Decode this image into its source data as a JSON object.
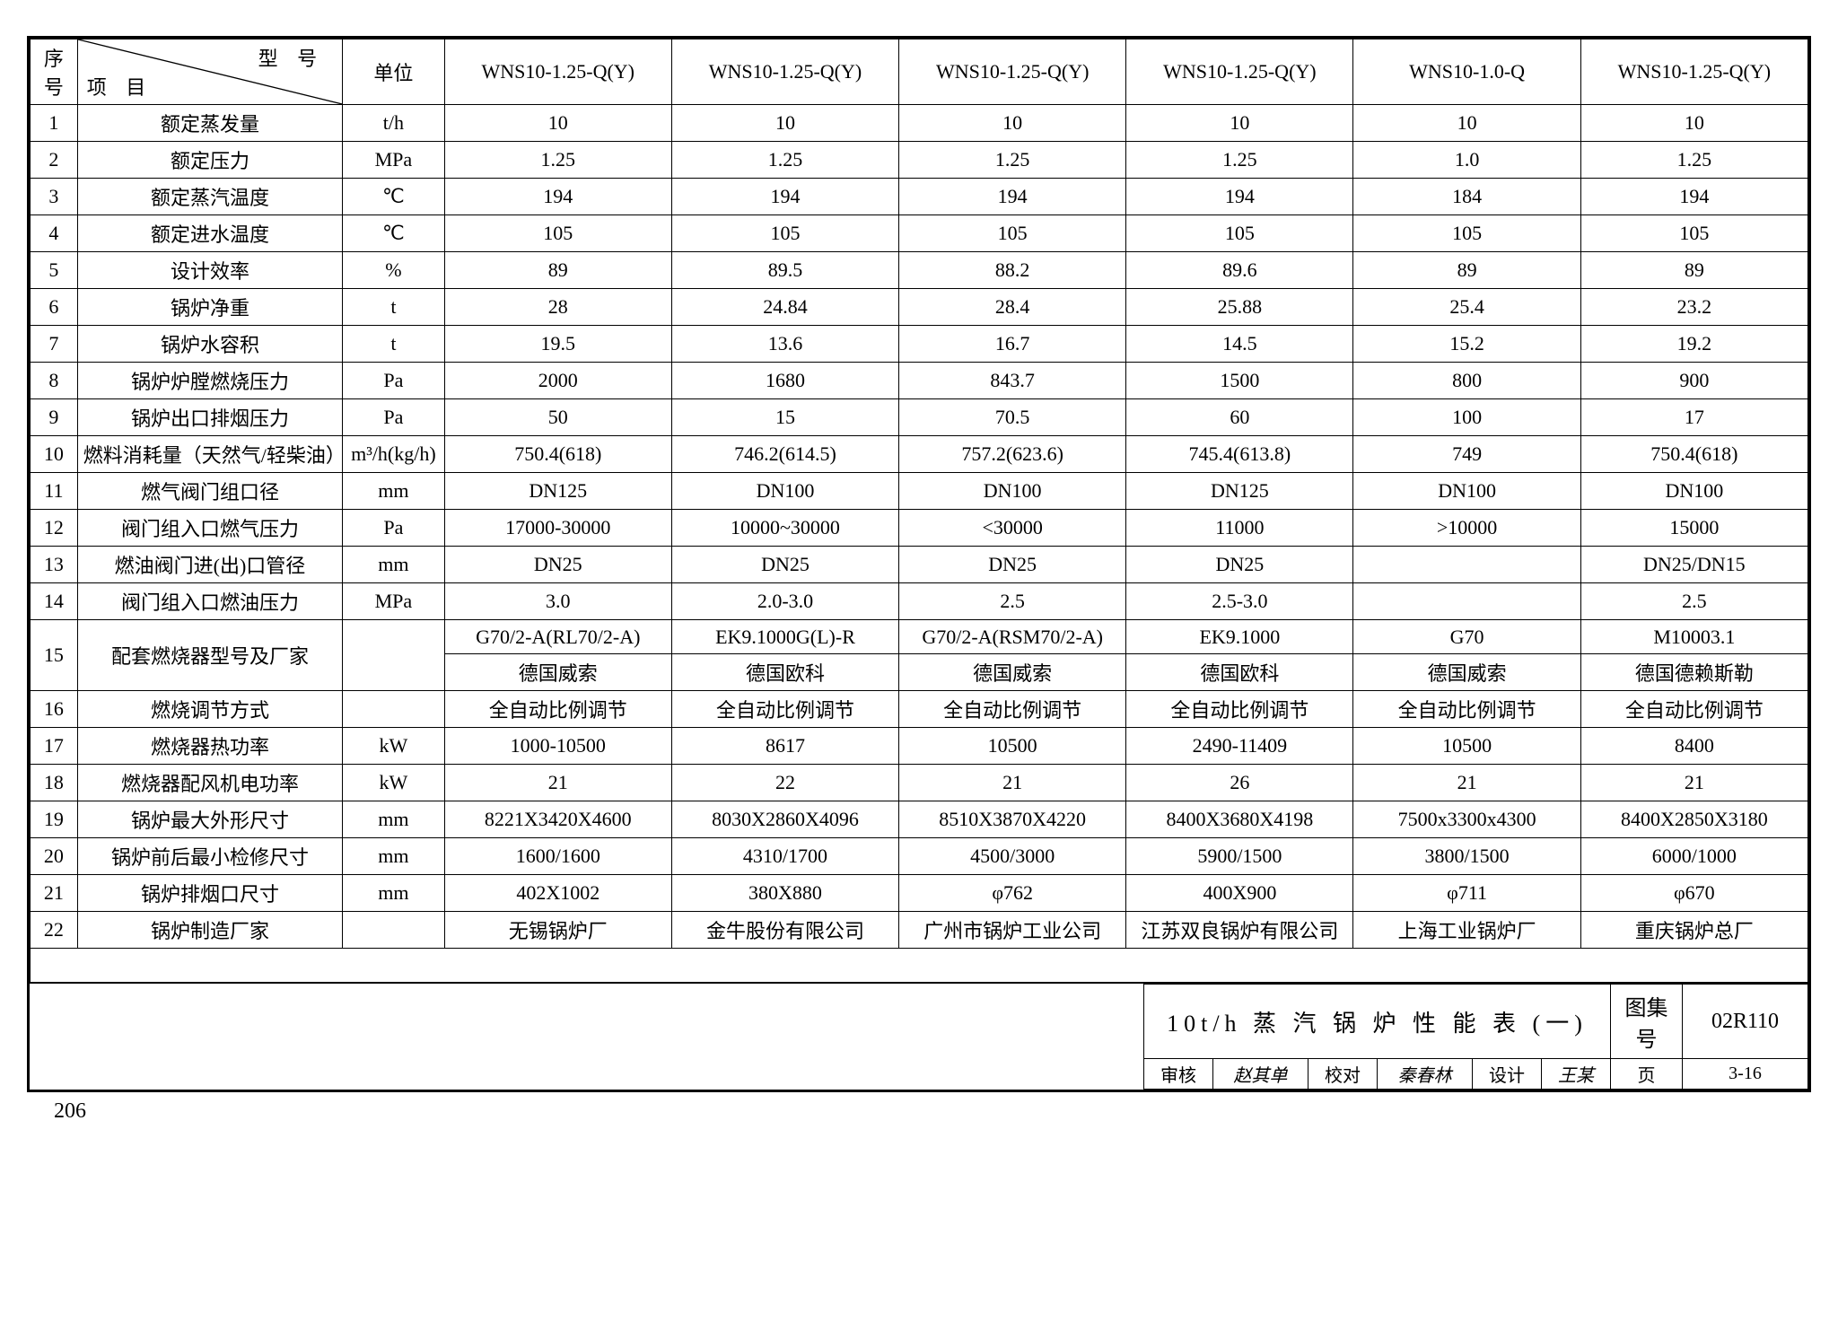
{
  "header": {
    "seq": "序号",
    "diag_top": "型 号",
    "diag_bottom": "项 目",
    "unit": "单位",
    "models": [
      "WNS10-1.25-Q(Y)",
      "WNS10-1.25-Q(Y)",
      "WNS10-1.25-Q(Y)",
      "WNS10-1.25-Q(Y)",
      "WNS10-1.0-Q",
      "WNS10-1.25-Q(Y)"
    ]
  },
  "rows": [
    {
      "n": "1",
      "item": "额定蒸发量",
      "unit": "t/h",
      "v": [
        "10",
        "10",
        "10",
        "10",
        "10",
        "10"
      ]
    },
    {
      "n": "2",
      "item": "额定压力",
      "unit": "MPa",
      "v": [
        "1.25",
        "1.25",
        "1.25",
        "1.25",
        "1.0",
        "1.25"
      ]
    },
    {
      "n": "3",
      "item": "额定蒸汽温度",
      "unit": "℃",
      "v": [
        "194",
        "194",
        "194",
        "194",
        "184",
        "194"
      ]
    },
    {
      "n": "4",
      "item": "额定进水温度",
      "unit": "℃",
      "v": [
        "105",
        "105",
        "105",
        "105",
        "105",
        "105"
      ]
    },
    {
      "n": "5",
      "item": "设计效率",
      "unit": "%",
      "v": [
        "89",
        "89.5",
        "88.2",
        "89.6",
        "89",
        "89"
      ]
    },
    {
      "n": "6",
      "item": "锅炉净重",
      "unit": "t",
      "v": [
        "28",
        "24.84",
        "28.4",
        "25.88",
        "25.4",
        "23.2"
      ]
    },
    {
      "n": "7",
      "item": "锅炉水容积",
      "unit": "t",
      "v": [
        "19.5",
        "13.6",
        "16.7",
        "14.5",
        "15.2",
        "19.2"
      ]
    },
    {
      "n": "8",
      "item": "锅炉炉膛燃烧压力",
      "unit": "Pa",
      "v": [
        "2000",
        "1680",
        "843.7",
        "1500",
        "800",
        "900"
      ]
    },
    {
      "n": "9",
      "item": "锅炉出口排烟压力",
      "unit": "Pa",
      "v": [
        "50",
        "15",
        "70.5",
        "60",
        "100",
        "17"
      ]
    },
    {
      "n": "10",
      "item": "燃料消耗量（天然气/轻柴油）",
      "unit": "m³/h(kg/h)",
      "v": [
        "750.4(618)",
        "746.2(614.5)",
        "757.2(623.6)",
        "745.4(613.8)",
        "749",
        "750.4(618)"
      ]
    },
    {
      "n": "11",
      "item": "燃气阀门组口径",
      "unit": "mm",
      "v": [
        "DN125",
        "DN100",
        "DN100",
        "DN125",
        "DN100",
        "DN100"
      ]
    },
    {
      "n": "12",
      "item": "阀门组入口燃气压力",
      "unit": "Pa",
      "v": [
        "17000-30000",
        "10000~30000",
        "<30000",
        "11000",
        ">10000",
        "15000"
      ]
    },
    {
      "n": "13",
      "item": "燃油阀门进(出)口管径",
      "unit": "mm",
      "v": [
        "DN25",
        "DN25",
        "DN25",
        "DN25",
        "",
        "DN25/DN15"
      ]
    },
    {
      "n": "14",
      "item": "阀门组入口燃油压力",
      "unit": "MPa",
      "v": [
        "3.0",
        "2.0-3.0",
        "2.5",
        "2.5-3.0",
        "",
        "2.5"
      ]
    }
  ],
  "row15": {
    "n": "15",
    "item": "配套燃烧器型号及厂家",
    "unit": "",
    "line1": [
      "G70/2-A(RL70/2-A)",
      "EK9.1000G(L)-R",
      "G70/2-A(RSM70/2-A)",
      "EK9.1000",
      "G70",
      "M10003.1"
    ],
    "line2": [
      "德国威索",
      "德国欧科",
      "德国威索",
      "德国欧科",
      "德国威索",
      "德国德赖斯勒"
    ]
  },
  "rows2": [
    {
      "n": "16",
      "item": "燃烧调节方式",
      "unit": "",
      "v": [
        "全自动比例调节",
        "全自动比例调节",
        "全自动比例调节",
        "全自动比例调节",
        "全自动比例调节",
        "全自动比例调节"
      ]
    },
    {
      "n": "17",
      "item": "燃烧器热功率",
      "unit": "kW",
      "v": [
        "1000-10500",
        "8617",
        "10500",
        "2490-11409",
        "10500",
        "8400"
      ]
    },
    {
      "n": "18",
      "item": "燃烧器配风机电功率",
      "unit": "kW",
      "v": [
        "21",
        "22",
        "21",
        "26",
        "21",
        "21"
      ]
    },
    {
      "n": "19",
      "item": "锅炉最大外形尺寸",
      "unit": "mm",
      "v": [
        "8221X3420X4600",
        "8030X2860X4096",
        "8510X3870X4220",
        "8400X3680X4198",
        "7500x3300x4300",
        "8400X2850X3180"
      ]
    },
    {
      "n": "20",
      "item": "锅炉前后最小检修尺寸",
      "unit": "mm",
      "v": [
        "1600/1600",
        "4310/1700",
        "4500/3000",
        "5900/1500",
        "3800/1500",
        "6000/1000"
      ]
    },
    {
      "n": "21",
      "item": "锅炉排烟口尺寸",
      "unit": "mm",
      "v": [
        "402X1002",
        "380X880",
        "φ762",
        "400X900",
        "φ711",
        "φ670"
      ]
    },
    {
      "n": "22",
      "item": "锅炉制造厂家",
      "unit": "",
      "v": [
        "无锡锅炉厂",
        "金牛股份有限公司",
        "广州市锅炉工业公司",
        "江苏双良锅炉有限公司",
        "上海工业锅炉厂",
        "重庆锅炉总厂"
      ]
    }
  ],
  "titleblock": {
    "title": "10t/h 蒸 汽 锅 炉 性 能 表 (一)",
    "setlabel": "图集号",
    "setnum": "02R110",
    "rev_label": "审核",
    "rev_name": "赵其单",
    "chk_label": "校对",
    "chk_name": "秦春林",
    "des_label": "设计",
    "des_name": "王某",
    "page_label": "页",
    "page_val": "3-16"
  },
  "pagenum": "206"
}
